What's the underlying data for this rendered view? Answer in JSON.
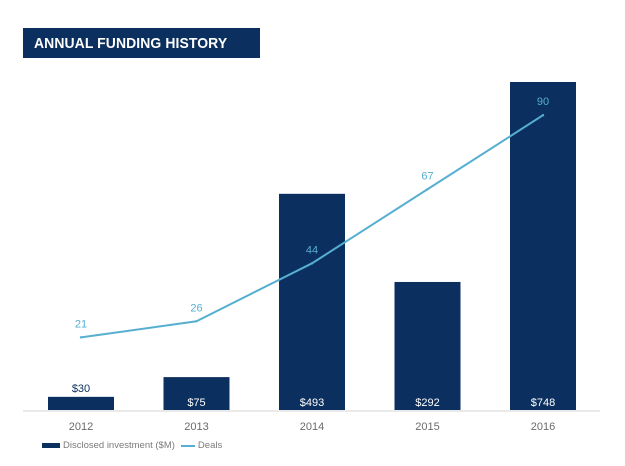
{
  "title": "ANNUAL FUNDING HISTORY",
  "colors": {
    "bar": "#0b2f5e",
    "line": "#56afd1",
    "axis": "#d4d4d4"
  },
  "chart_data": {
    "type": "bar",
    "title": "ANNUAL FUNDING HISTORY",
    "categories": [
      "2012",
      "2013",
      "2014",
      "2015",
      "2016"
    ],
    "series": [
      {
        "name": "Disclosed investment ($M)",
        "type": "bar",
        "values": [
          30,
          75,
          493,
          292,
          748
        ],
        "labels": [
          "$30",
          "$75",
          "$493",
          "$292",
          "$748"
        ]
      },
      {
        "name": "Deals",
        "type": "line",
        "values": [
          21,
          26,
          44,
          67,
          90
        ],
        "labels": [
          "21",
          "26",
          "44",
          "67",
          "90"
        ]
      }
    ],
    "legend": [
      "Disclosed investment ($M)",
      "Deals"
    ],
    "legend_position": "bottom-left",
    "ylim_bars": [
      0,
      748
    ],
    "ylim_line": [
      0,
      95
    ],
    "grid": false
  }
}
